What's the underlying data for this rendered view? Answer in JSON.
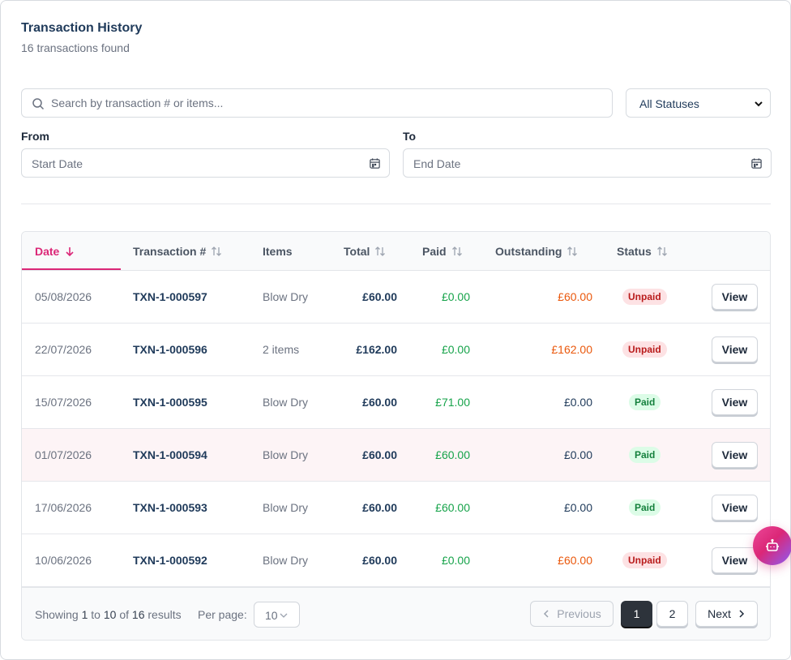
{
  "header": {
    "title": "Transaction History",
    "subtitle": "16 transactions found"
  },
  "filters": {
    "search_placeholder": "Search by transaction # or items...",
    "status_value": "All Statuses",
    "from_label": "From",
    "from_placeholder": "Start Date",
    "to_label": "To",
    "to_placeholder": "End Date"
  },
  "table": {
    "columns": {
      "date": "Date",
      "transaction": "Transaction #",
      "items": "Items",
      "total": "Total",
      "paid": "Paid",
      "outstanding": "Outstanding",
      "status": "Status"
    },
    "sort": {
      "column": "date",
      "direction": "desc"
    },
    "rows": [
      {
        "date": "05/08/2026",
        "txn": "TXN-1-000597",
        "items": "Blow Dry",
        "total": "£60.00",
        "paid": "£0.00",
        "outstanding": "£60.00",
        "status": "Unpaid",
        "action": "View"
      },
      {
        "date": "22/07/2026",
        "txn": "TXN-1-000596",
        "items": "2 items",
        "total": "£162.00",
        "paid": "£0.00",
        "outstanding": "£162.00",
        "status": "Unpaid",
        "action": "View"
      },
      {
        "date": "15/07/2026",
        "txn": "TXN-1-000595",
        "items": "Blow Dry",
        "total": "£60.00",
        "paid": "£71.00",
        "outstanding": "£0.00",
        "status": "Paid",
        "action": "View"
      },
      {
        "date": "01/07/2026",
        "txn": "TXN-1-000594",
        "items": "Blow Dry",
        "total": "£60.00",
        "paid": "£60.00",
        "outstanding": "£0.00",
        "status": "Paid",
        "action": "View"
      },
      {
        "date": "17/06/2026",
        "txn": "TXN-1-000593",
        "items": "Blow Dry",
        "total": "£60.00",
        "paid": "£60.00",
        "outstanding": "£0.00",
        "status": "Paid",
        "action": "View"
      },
      {
        "date": "10/06/2026",
        "txn": "TXN-1-000592",
        "items": "Blow Dry",
        "total": "£60.00",
        "paid": "£0.00",
        "outstanding": "£60.00",
        "status": "Unpaid",
        "action": "View"
      }
    ]
  },
  "footer": {
    "showing_prefix": "Showing ",
    "showing_from": "1",
    "showing_to_word": " to ",
    "showing_to": "10",
    "showing_of_word": " of ",
    "showing_total": "16",
    "showing_suffix": " results",
    "per_page_label": "Per page:",
    "per_page_value": "10",
    "prev_label": "Previous",
    "next_label": "Next",
    "pages": [
      "1",
      "2"
    ],
    "current_page": "1"
  },
  "icons": {
    "search": "search-icon",
    "calendar": "calendar-icon",
    "sort": "sort-icon",
    "sort_desc": "arrow-down-icon",
    "assistant": "robot-icon"
  },
  "colors": {
    "accent": "#db2777",
    "paid_text": "#16a34a",
    "outstanding_due": "#ea580c",
    "unpaid_badge_bg": "#fde2e4",
    "paid_badge_bg": "#dcfce7"
  }
}
